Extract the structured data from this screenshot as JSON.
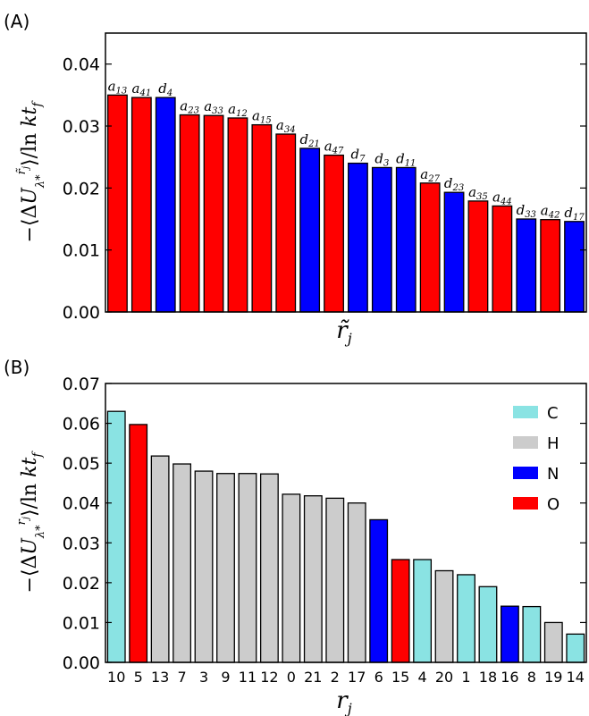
{
  "panel_a_label": "(A)",
  "panel_b_label": "(B)",
  "colors": {
    "C": "#8ae3e3",
    "H": "#cccccc",
    "N": "#0000ff",
    "O": "#ff0000"
  },
  "chart_data": [
    {
      "type": "bar",
      "panel": "(A)",
      "xlabel": "r̃_j",
      "ylabel": "−⟨ΔU_λ*^{r̃_j}⟩/ln kt_f",
      "ylim": [
        0,
        0.045
      ],
      "yticks": [
        "0.00",
        "0.01",
        "0.02",
        "0.03",
        "0.04"
      ],
      "categories": [
        {
          "base": "a",
          "sub": "13"
        },
        {
          "base": "a",
          "sub": "41"
        },
        {
          "base": "d",
          "sub": "4"
        },
        {
          "base": "a",
          "sub": "23"
        },
        {
          "base": "a",
          "sub": "33"
        },
        {
          "base": "a",
          "sub": "12"
        },
        {
          "base": "a",
          "sub": "15"
        },
        {
          "base": "a",
          "sub": "34"
        },
        {
          "base": "d",
          "sub": "21"
        },
        {
          "base": "a",
          "sub": "47"
        },
        {
          "base": "d",
          "sub": "7"
        },
        {
          "base": "d",
          "sub": "3"
        },
        {
          "base": "d",
          "sub": "11"
        },
        {
          "base": "a",
          "sub": "27"
        },
        {
          "base": "d",
          "sub": "23"
        },
        {
          "base": "a",
          "sub": "35"
        },
        {
          "base": "a",
          "sub": "44"
        },
        {
          "base": "d",
          "sub": "33"
        },
        {
          "base": "a",
          "sub": "42"
        },
        {
          "base": "d",
          "sub": "17"
        }
      ],
      "values": [
        0.035,
        0.0346,
        0.0346,
        0.0318,
        0.0317,
        0.0313,
        0.0302,
        0.0287,
        0.0264,
        0.0253,
        0.024,
        0.0233,
        0.0233,
        0.0208,
        0.0193,
        0.0179,
        0.0171,
        0.015,
        0.0149,
        0.0146
      ],
      "bar_colors": [
        "O",
        "O",
        "N",
        "O",
        "O",
        "O",
        "O",
        "O",
        "N",
        "O",
        "N",
        "N",
        "N",
        "O",
        "N",
        "O",
        "O",
        "N",
        "O",
        "N"
      ],
      "grid": false
    },
    {
      "type": "bar",
      "panel": "(B)",
      "xlabel": "r_j",
      "ylabel": "−⟨ΔU_λ*^{r_j}⟩/ln kt_f",
      "ylim": [
        0,
        0.07
      ],
      "yticks": [
        "0.00",
        "0.01",
        "0.02",
        "0.03",
        "0.04",
        "0.05",
        "0.06",
        "0.07"
      ],
      "categories": [
        "10",
        "5",
        "13",
        "7",
        "3",
        "9",
        "11",
        "12",
        "0",
        "21",
        "2",
        "17",
        "6",
        "15",
        "4",
        "20",
        "1",
        "18",
        "16",
        "8",
        "19",
        "14"
      ],
      "values": [
        0.063,
        0.0597,
        0.0518,
        0.0498,
        0.048,
        0.0474,
        0.0474,
        0.0473,
        0.0422,
        0.0418,
        0.0412,
        0.04,
        0.0358,
        0.0258,
        0.0258,
        0.023,
        0.022,
        0.019,
        0.0141,
        0.014,
        0.01,
        0.0071
      ],
      "bar_colors": [
        "C",
        "O",
        "H",
        "H",
        "H",
        "H",
        "H",
        "H",
        "H",
        "H",
        "H",
        "H",
        "N",
        "O",
        "C",
        "H",
        "C",
        "C",
        "N",
        "C",
        "H",
        "C"
      ],
      "legend": {
        "placement": "top-right",
        "entries": [
          "C",
          "H",
          "N",
          "O"
        ]
      },
      "grid": false
    }
  ]
}
